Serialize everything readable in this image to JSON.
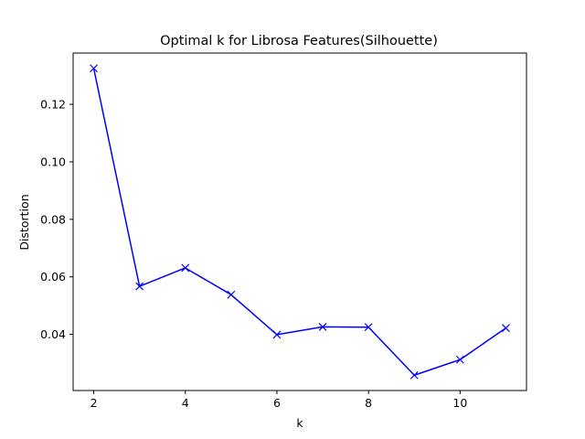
{
  "colors": {
    "line": "#0000ff",
    "axis": "#000000",
    "background": "#ffffff"
  },
  "chart_data": {
    "type": "line",
    "title": "Optimal k for Librosa Features(Silhouette)",
    "xlabel": "k",
    "ylabel": "Distortion",
    "x": [
      2,
      3,
      4,
      5,
      6,
      7,
      8,
      9,
      10,
      11
    ],
    "series": [
      {
        "marker": "x",
        "color": "#0000ff",
        "values": [
          0.1325,
          0.0567,
          0.0631,
          0.0538,
          0.0399,
          0.0426,
          0.0425,
          0.0258,
          0.0312,
          0.0422
        ]
      }
    ],
    "xlim": [
      1.55,
      11.45
    ],
    "ylim": [
      0.02047,
      0.13783
    ],
    "xticks": [
      2,
      4,
      6,
      8,
      10
    ],
    "xtick_labels": [
      "2",
      "4",
      "6",
      "8",
      "10"
    ],
    "yticks": [
      0.04,
      0.06,
      0.08,
      0.1,
      0.12
    ],
    "ytick_labels": [
      "0.04",
      "0.06",
      "0.08",
      "0.10",
      "0.12"
    ],
    "grid": false,
    "legend": "none"
  }
}
